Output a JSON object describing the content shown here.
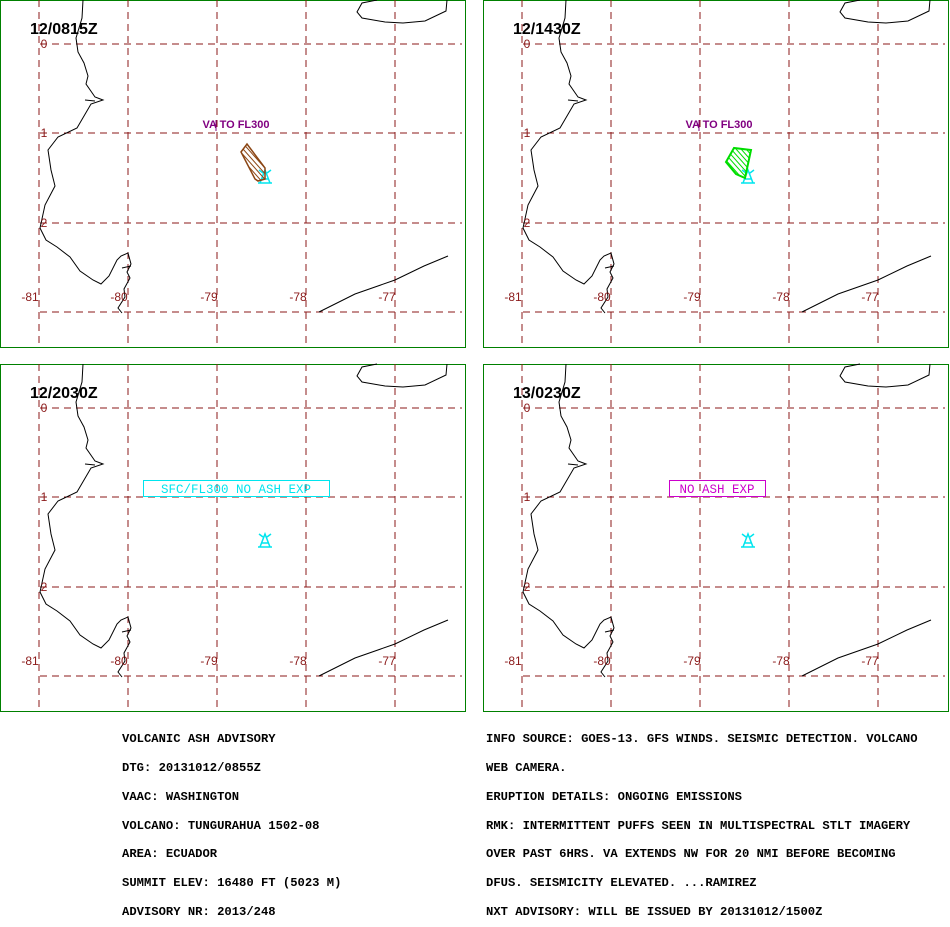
{
  "colors": {
    "frame": "#008000",
    "grid": "#8b1a1a",
    "coast": "#000000",
    "volcano": "#00e5ee",
    "purple": "#800080",
    "ash1": "#8b4513",
    "ash2": "#00dd00",
    "magenta": "#cc00cc"
  },
  "panels": [
    {
      "time": "12/0815Z",
      "ash_label": "VA TO FL300",
      "ash_color": "ash1"
    },
    {
      "time": "12/1430Z",
      "ash_label": "VA TO FL300",
      "ash_color": "ash2"
    },
    {
      "time": "12/2030Z",
      "box_label": "SFC/FL300 NO ASH EXP",
      "box_color": "volcano"
    },
    {
      "time": "13/0230Z",
      "box_label": "NO ASH EXP",
      "box_color": "magenta"
    }
  ],
  "lat_labels": [
    "0",
    "1",
    "2"
  ],
  "lon_labels": [
    "-81",
    "-80",
    "-79",
    "-78",
    "-77"
  ],
  "advisory_left": [
    "VOLCANIC ASH ADVISORY",
    "DTG: 20131012/0855Z",
    "VAAC: WASHINGTON",
    "VOLCANO: TUNGURAHUA 1502-08",
    "AREA: ECUADOR",
    "SUMMIT ELEV: 16480 FT (5023 M)",
    "ADVISORY NR: 2013/248"
  ],
  "advisory_right": [
    "INFO SOURCE: GOES-13. GFS WINDS. SEISMIC DETECTION. VOLCANO",
    "WEB CAMERA.",
    "ERUPTION DETAILS: ONGOING EMISSIONS",
    "RMK: INTERMITTENT PUFFS SEEN IN MULTISPECTRAL STLT IMAGERY",
    "OVER PAST 6HRS. VA EXTENDS NW FOR 20 NMI BEFORE BECOMING",
    "DFUS. SEISMICITY ELEVATED. ...RAMIREZ",
    "NXT ADVISORY: WILL BE ISSUED BY 20131012/1500Z"
  ]
}
